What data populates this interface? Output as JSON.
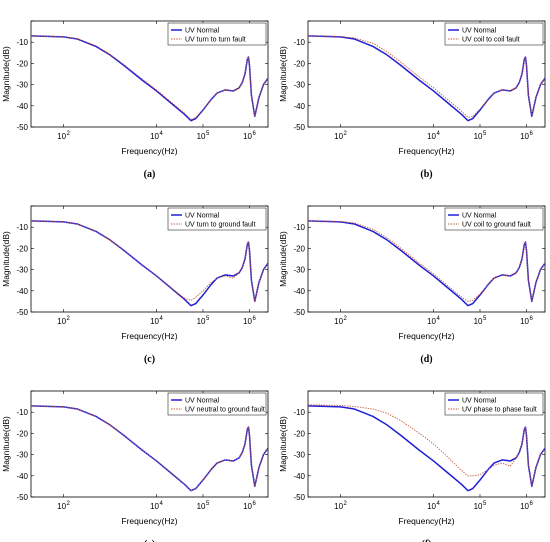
{
  "colors": {
    "normal": "#1f1fd6",
    "fault": "#c85a3a",
    "axes": "#000000",
    "background": "#ffffff"
  },
  "chart_data": [
    {
      "type": "line",
      "panel_label": "(a)",
      "xlabel": "Frequency(Hz)",
      "ylabel": "Magnitude(dB)",
      "xscale": "log",
      "xlim": [
        20,
        2500000
      ],
      "ylim": [
        -50,
        0
      ],
      "xticks": [
        100,
        10000,
        100000,
        1000000
      ],
      "xtick_labels": [
        "10",
        "10",
        "10",
        "10"
      ],
      "xtick_exponents": [
        "2",
        "4",
        "5",
        "6"
      ],
      "yticks": [
        0,
        -10,
        -20,
        -30,
        -40,
        -50
      ],
      "ytick_labels": [
        "",
        "-10",
        "-20",
        "-30",
        "-40",
        "-50"
      ],
      "legend_position": "top-right",
      "series": [
        {
          "name": "UV Normal",
          "color": "#1f1fd6",
          "style": "solid",
          "x": [
            20,
            100,
            200,
            500,
            1000,
            2000,
            5000,
            10000,
            20000,
            40000,
            55000,
            70000,
            100000,
            150000,
            200000,
            300000,
            450000,
            600000,
            700000,
            800000,
            900000,
            950000,
            1000000,
            1100000,
            1300000,
            1600000,
            2000000,
            2500000
          ],
          "y": [
            -7,
            -7.5,
            -8.5,
            -12,
            -16,
            -21,
            -28,
            -33,
            -38.5,
            -44,
            -47,
            -46,
            -42,
            -37,
            -34,
            -32.5,
            -33,
            -31.5,
            -29,
            -25,
            -18,
            -17,
            -21,
            -35,
            -45,
            -36,
            -30,
            -27
          ]
        },
        {
          "name": "UV turn to turn fault",
          "color": "#c85a3a",
          "style": "dotted",
          "x": [
            20,
            100,
            200,
            500,
            1000,
            2000,
            5000,
            10000,
            20000,
            40000,
            55000,
            70000,
            100000,
            150000,
            200000,
            300000,
            450000,
            600000,
            700000,
            800000,
            900000,
            950000,
            1000000,
            1100000,
            1300000,
            1600000,
            2000000,
            2500000
          ],
          "y": [
            -7,
            -7.5,
            -8.3,
            -11.7,
            -15.7,
            -20.6,
            -27.5,
            -32.5,
            -38,
            -43.5,
            -46.5,
            -45.5,
            -42,
            -37,
            -34,
            -32.5,
            -33,
            -31.5,
            -29,
            -25,
            -18,
            -17,
            -21,
            -35,
            -45,
            -36,
            -30,
            -27
          ]
        }
      ]
    },
    {
      "type": "line",
      "panel_label": "(b)",
      "xlabel": "Frequency(Hz)",
      "ylabel": "Magnitude(dB)",
      "xscale": "log",
      "xlim": [
        20,
        2500000
      ],
      "ylim": [
        -50,
        0
      ],
      "xticks": [
        100,
        10000,
        100000,
        1000000
      ],
      "xtick_labels": [
        "10",
        "10",
        "10",
        "10"
      ],
      "xtick_exponents": [
        "2",
        "4",
        "5",
        "6"
      ],
      "yticks": [
        0,
        -10,
        -20,
        -30,
        -40,
        -50
      ],
      "ytick_labels": [
        "",
        "-10",
        "-20",
        "-30",
        "-40",
        "-50"
      ],
      "legend_position": "top-right",
      "series": [
        {
          "name": "UV Normal",
          "color": "#1f1fd6",
          "style": "solid",
          "x": [
            20,
            100,
            200,
            500,
            1000,
            2000,
            5000,
            10000,
            20000,
            40000,
            55000,
            70000,
            100000,
            150000,
            200000,
            300000,
            450000,
            600000,
            700000,
            800000,
            900000,
            950000,
            1000000,
            1100000,
            1300000,
            1600000,
            2000000,
            2500000
          ],
          "y": [
            -7,
            -7.5,
            -8.5,
            -12,
            -16,
            -21,
            -28,
            -33,
            -38.5,
            -44,
            -47,
            -46,
            -42,
            -37,
            -34,
            -32.5,
            -33,
            -31.5,
            -29,
            -25,
            -18,
            -17,
            -21,
            -35,
            -45,
            -36,
            -30,
            -27
          ]
        },
        {
          "name": "UV coil to coil fault",
          "color": "#c85a3a",
          "style": "dotted",
          "x": [
            20,
            100,
            200,
            500,
            1000,
            2000,
            5000,
            10000,
            20000,
            40000,
            55000,
            70000,
            100000,
            150000,
            200000,
            300000,
            450000,
            600000,
            700000,
            800000,
            900000,
            950000,
            1000000,
            1100000,
            1300000,
            1600000,
            2000000,
            2500000
          ],
          "y": [
            -7,
            -7.3,
            -8,
            -10.5,
            -14.5,
            -19.5,
            -26.5,
            -31.5,
            -37,
            -42.5,
            -45.5,
            -45,
            -41.5,
            -37,
            -34,
            -32.5,
            -33,
            -31.5,
            -29,
            -25,
            -18,
            -17,
            -21,
            -35,
            -45,
            -36,
            -30,
            -27
          ]
        }
      ]
    },
    {
      "type": "line",
      "panel_label": "(c)",
      "xlabel": "Frequency(Hz)",
      "ylabel": "Magnitude(dB)",
      "xscale": "log",
      "xlim": [
        20,
        2500000
      ],
      "ylim": [
        -50,
        0
      ],
      "xticks": [
        100,
        10000,
        100000,
        1000000
      ],
      "xtick_labels": [
        "10",
        "10",
        "10",
        "10"
      ],
      "xtick_exponents": [
        "2",
        "4",
        "5",
        "6"
      ],
      "yticks": [
        0,
        -10,
        -20,
        -30,
        -40,
        -50
      ],
      "ytick_labels": [
        "",
        "-10",
        "-20",
        "-30",
        "-40",
        "-50"
      ],
      "legend_position": "top-right",
      "series": [
        {
          "name": "UV Normal",
          "color": "#1f1fd6",
          "style": "solid",
          "x": [
            20,
            100,
            200,
            500,
            1000,
            2000,
            5000,
            10000,
            20000,
            40000,
            55000,
            70000,
            100000,
            150000,
            200000,
            300000,
            450000,
            600000,
            700000,
            800000,
            900000,
            950000,
            1000000,
            1100000,
            1300000,
            1600000,
            2000000,
            2500000
          ],
          "y": [
            -7,
            -7.5,
            -8.5,
            -12,
            -16,
            -21,
            -28,
            -33,
            -38.5,
            -44,
            -47,
            -46,
            -42,
            -37,
            -34,
            -32.5,
            -33,
            -31.5,
            -29,
            -25,
            -18,
            -17,
            -21,
            -35,
            -45,
            -36,
            -30,
            -27
          ]
        },
        {
          "name": "UV turn to ground fault",
          "color": "#c85a3a",
          "style": "dotted",
          "x": [
            20,
            100,
            200,
            500,
            1000,
            2000,
            5000,
            10000,
            20000,
            40000,
            55000,
            70000,
            100000,
            150000,
            200000,
            300000,
            450000,
            600000,
            700000,
            800000,
            900000,
            950000,
            1000000,
            1100000,
            1300000,
            1600000,
            2000000,
            2500000
          ],
          "y": [
            -7,
            -7.5,
            -8.5,
            -12,
            -16,
            -21,
            -28,
            -33,
            -38.5,
            -43.5,
            -44.5,
            -43,
            -40,
            -36,
            -34,
            -33,
            -34,
            -31.5,
            -29,
            -25,
            -18,
            -17,
            -21,
            -35,
            -45,
            -36,
            -30,
            -27
          ]
        }
      ]
    },
    {
      "type": "line",
      "panel_label": "(d)",
      "xlabel": "Frequency(Hz)",
      "ylabel": "Magnitude(dB)",
      "xscale": "log",
      "xlim": [
        20,
        2500000
      ],
      "ylim": [
        -50,
        0
      ],
      "xticks": [
        100,
        10000,
        100000,
        1000000
      ],
      "xtick_labels": [
        "10",
        "10",
        "10",
        "10"
      ],
      "xtick_exponents": [
        "2",
        "4",
        "5",
        "6"
      ],
      "yticks": [
        0,
        -10,
        -20,
        -30,
        -40,
        -50
      ],
      "ytick_labels": [
        "",
        "-10",
        "-20",
        "-30",
        "-40",
        "-50"
      ],
      "legend_position": "top-right",
      "series": [
        {
          "name": "UV Normal",
          "color": "#1f1fd6",
          "style": "solid",
          "x": [
            20,
            100,
            200,
            500,
            1000,
            2000,
            5000,
            10000,
            20000,
            40000,
            55000,
            70000,
            100000,
            150000,
            200000,
            300000,
            450000,
            600000,
            700000,
            800000,
            900000,
            950000,
            1000000,
            1100000,
            1300000,
            1600000,
            2000000,
            2500000
          ],
          "y": [
            -7,
            -7.5,
            -8.5,
            -12,
            -16,
            -21,
            -28,
            -33,
            -38.5,
            -44,
            -47,
            -46,
            -42,
            -37,
            -34,
            -32.5,
            -33,
            -31.5,
            -29,
            -25,
            -18,
            -17,
            -21,
            -35,
            -45,
            -36,
            -30,
            -27
          ]
        },
        {
          "name": "UV coil to ground fault",
          "color": "#c85a3a",
          "style": "dotted",
          "x": [
            20,
            100,
            200,
            500,
            1000,
            2000,
            5000,
            10000,
            20000,
            40000,
            55000,
            70000,
            100000,
            150000,
            200000,
            300000,
            450000,
            600000,
            700000,
            800000,
            900000,
            950000,
            1000000,
            1100000,
            1300000,
            1600000,
            2000000,
            2500000
          ],
          "y": [
            -7,
            -7.3,
            -8,
            -11,
            -15,
            -20,
            -27,
            -32,
            -37.5,
            -43,
            -45,
            -44.5,
            -41.5,
            -37,
            -34,
            -32.5,
            -33,
            -31.5,
            -29,
            -25,
            -18,
            -17,
            -21,
            -35,
            -45,
            -36,
            -30,
            -27
          ]
        }
      ]
    },
    {
      "type": "line",
      "panel_label": "(e)",
      "xlabel": "Frequency(Hz)",
      "ylabel": "Magnitude(dB)",
      "xscale": "log",
      "xlim": [
        20,
        2500000
      ],
      "ylim": [
        -50,
        0
      ],
      "xticks": [
        100,
        10000,
        100000,
        1000000
      ],
      "xtick_labels": [
        "10",
        "10",
        "10",
        "10"
      ],
      "xtick_exponents": [
        "2",
        "4",
        "5",
        "6"
      ],
      "yticks": [
        0,
        -10,
        -20,
        -30,
        -40,
        -50
      ],
      "ytick_labels": [
        "",
        "-10",
        "-20",
        "-30",
        "-40",
        "-50"
      ],
      "legend_position": "top-right",
      "series": [
        {
          "name": "UV Normal",
          "color": "#1f1fd6",
          "style": "solid",
          "x": [
            20,
            100,
            200,
            500,
            1000,
            2000,
            5000,
            10000,
            20000,
            40000,
            55000,
            70000,
            100000,
            150000,
            200000,
            300000,
            450000,
            600000,
            700000,
            800000,
            900000,
            950000,
            1000000,
            1100000,
            1300000,
            1600000,
            2000000,
            2500000
          ],
          "y": [
            -7,
            -7.5,
            -8.5,
            -12,
            -16,
            -21,
            -28,
            -33,
            -38.5,
            -44,
            -47,
            -46,
            -42,
            -37,
            -34,
            -32.5,
            -33,
            -31.5,
            -29,
            -25,
            -18,
            -17,
            -21,
            -35,
            -45,
            -36,
            -30,
            -27
          ]
        },
        {
          "name": "UV neutral to ground fault",
          "color": "#c85a3a",
          "style": "dotted",
          "x": [
            20,
            100,
            200,
            500,
            1000,
            2000,
            5000,
            10000,
            20000,
            40000,
            55000,
            70000,
            100000,
            150000,
            200000,
            300000,
            450000,
            600000,
            700000,
            800000,
            900000,
            950000,
            1000000,
            1100000,
            1300000,
            1600000,
            2000000,
            2500000
          ],
          "y": [
            -7,
            -7.5,
            -8.5,
            -12,
            -16,
            -21,
            -28,
            -33,
            -38.5,
            -44,
            -47,
            -46,
            -42,
            -37,
            -34,
            -32.5,
            -33,
            -31.5,
            -29,
            -25,
            -18,
            -17,
            -21,
            -35,
            -45,
            -36,
            -30,
            -27
          ]
        }
      ]
    },
    {
      "type": "line",
      "panel_label": "(f)",
      "xlabel": "Frequency(Hz)",
      "ylabel": "Magnitude(dB)",
      "xscale": "log",
      "xlim": [
        20,
        2500000
      ],
      "ylim": [
        -50,
        0
      ],
      "xticks": [
        100,
        10000,
        100000,
        1000000
      ],
      "xtick_labels": [
        "10",
        "10",
        "10",
        "10"
      ],
      "xtick_exponents": [
        "2",
        "4",
        "5",
        "6"
      ],
      "yticks": [
        0,
        -10,
        -20,
        -30,
        -40,
        -50
      ],
      "ytick_labels": [
        "",
        "-10",
        "-20",
        "-30",
        "-40",
        "-50"
      ],
      "legend_position": "top-right",
      "series": [
        {
          "name": "UV Normal",
          "color": "#1f1fd6",
          "style": "solid",
          "x": [
            20,
            100,
            200,
            500,
            1000,
            2000,
            5000,
            10000,
            20000,
            40000,
            55000,
            70000,
            100000,
            150000,
            200000,
            300000,
            450000,
            600000,
            700000,
            800000,
            900000,
            950000,
            1000000,
            1100000,
            1300000,
            1600000,
            2000000,
            2500000
          ],
          "y": [
            -7,
            -7.5,
            -8.5,
            -12,
            -16,
            -21,
            -28,
            -33,
            -38.5,
            -44,
            -47,
            -46,
            -42,
            -37,
            -34,
            -32.5,
            -33,
            -31.5,
            -29,
            -25,
            -18,
            -17,
            -21,
            -35,
            -45,
            -36,
            -30,
            -27
          ]
        },
        {
          "name": "UV phase to phase fault",
          "color": "#c85a3a",
          "style": "dotted",
          "x": [
            20,
            100,
            200,
            500,
            1000,
            2000,
            5000,
            10000,
            20000,
            40000,
            55000,
            70000,
            100000,
            150000,
            200000,
            300000,
            450000,
            600000,
            700000,
            800000,
            900000,
            950000,
            1000000,
            1100000,
            1300000,
            1600000,
            2000000,
            2500000
          ],
          "y": [
            -6.5,
            -6.8,
            -7.3,
            -8.5,
            -10.5,
            -14,
            -20,
            -25,
            -31,
            -37.5,
            -40,
            -40,
            -39.5,
            -37,
            -35,
            -34,
            -35.5,
            -31.5,
            -29,
            -25,
            -18,
            -17,
            -21,
            -35,
            -45,
            -36,
            -30,
            -27
          ]
        }
      ]
    }
  ]
}
